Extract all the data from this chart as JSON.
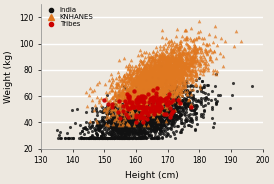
{
  "title": "",
  "xlabel": "Height (cm)",
  "ylabel": "Weight (kg)",
  "xlim": [
    130,
    200
  ],
  "ylim": [
    20,
    130
  ],
  "xticks": [
    130,
    140,
    150,
    160,
    170,
    180,
    190,
    200
  ],
  "yticks": [
    20,
    40,
    60,
    80,
    100,
    120
  ],
  "india_color": "#111111",
  "knhanes_color": "#E07820",
  "tribes_color": "#cc0000",
  "legend_labels": [
    "India",
    "KNHANES",
    "Tribes"
  ],
  "india_seed": 42,
  "knhanes_seed": 7,
  "tribes_seed": 99,
  "background_color": "#ede8e0",
  "grid_color": "#ffffff",
  "india_n": 2000,
  "knhanes_n": 3000,
  "tribes_n": 150
}
